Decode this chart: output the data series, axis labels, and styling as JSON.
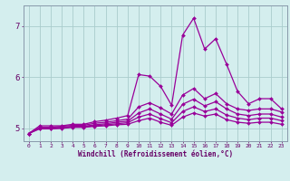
{
  "background_color": "#d4eeee",
  "grid_color": "#aacccc",
  "line_color": "#990099",
  "xlabel": "Windchill (Refroidissement éolien,°C)",
  "xlim": [
    -0.5,
    23.5
  ],
  "ylim": [
    4.75,
    7.4
  ],
  "yticks": [
    5,
    6,
    7
  ],
  "xticks": [
    0,
    1,
    2,
    3,
    4,
    5,
    6,
    7,
    8,
    9,
    10,
    11,
    12,
    13,
    14,
    15,
    16,
    17,
    18,
    19,
    20,
    21,
    22,
    23
  ],
  "series": [
    {
      "x": [
        0,
        1,
        2,
        3,
        4,
        5,
        6,
        7,
        8,
        9,
        10,
        11,
        12,
        13,
        14,
        15,
        16,
        17,
        18,
        19,
        20,
        21,
        22,
        23
      ],
      "y": [
        4.9,
        5.05,
        5.05,
        5.05,
        5.08,
        5.08,
        5.13,
        5.16,
        5.2,
        5.25,
        6.05,
        6.02,
        5.82,
        5.45,
        6.82,
        7.15,
        6.55,
        6.75,
        6.25,
        5.72,
        5.48,
        5.58,
        5.58,
        5.38
      ],
      "marker": "D",
      "markersize": 2.0,
      "linewidth": 0.9
    },
    {
      "x": [
        0,
        1,
        2,
        3,
        4,
        5,
        6,
        7,
        8,
        9,
        10,
        11,
        12,
        13,
        14,
        15,
        16,
        17,
        18,
        19,
        20,
        21,
        22,
        23
      ],
      "y": [
        4.9,
        5.02,
        5.02,
        5.04,
        5.06,
        5.06,
        5.1,
        5.12,
        5.15,
        5.18,
        5.42,
        5.5,
        5.4,
        5.28,
        5.65,
        5.78,
        5.58,
        5.68,
        5.48,
        5.38,
        5.35,
        5.38,
        5.38,
        5.32
      ],
      "marker": "D",
      "markersize": 2.0,
      "linewidth": 0.9
    },
    {
      "x": [
        0,
        1,
        2,
        3,
        4,
        5,
        6,
        7,
        8,
        9,
        10,
        11,
        12,
        13,
        14,
        15,
        16,
        17,
        18,
        19,
        20,
        21,
        22,
        23
      ],
      "y": [
        4.9,
        5.01,
        5.01,
        5.02,
        5.04,
        5.04,
        5.07,
        5.09,
        5.12,
        5.14,
        5.3,
        5.38,
        5.28,
        5.18,
        5.47,
        5.57,
        5.44,
        5.52,
        5.38,
        5.28,
        5.25,
        5.28,
        5.28,
        5.22
      ],
      "marker": "D",
      "markersize": 2.0,
      "linewidth": 0.9
    },
    {
      "x": [
        0,
        1,
        2,
        3,
        4,
        5,
        6,
        7,
        8,
        9,
        10,
        11,
        12,
        13,
        14,
        15,
        16,
        17,
        18,
        19,
        20,
        21,
        22,
        23
      ],
      "y": [
        4.9,
        5.0,
        5.0,
        5.01,
        5.03,
        5.03,
        5.05,
        5.07,
        5.09,
        5.11,
        5.22,
        5.28,
        5.19,
        5.11,
        5.33,
        5.42,
        5.33,
        5.38,
        5.26,
        5.2,
        5.17,
        5.2,
        5.2,
        5.15
      ],
      "marker": "D",
      "markersize": 2.0,
      "linewidth": 0.9
    },
    {
      "x": [
        0,
        1,
        2,
        3,
        4,
        5,
        6,
        7,
        8,
        9,
        10,
        11,
        12,
        13,
        14,
        15,
        16,
        17,
        18,
        19,
        20,
        21,
        22,
        23
      ],
      "y": [
        4.9,
        4.99,
        4.99,
        5.0,
        5.02,
        5.02,
        5.04,
        5.05,
        5.07,
        5.08,
        5.15,
        5.2,
        5.12,
        5.06,
        5.22,
        5.3,
        5.24,
        5.28,
        5.17,
        5.12,
        5.1,
        5.12,
        5.12,
        5.08
      ],
      "marker": "D",
      "markersize": 2.0,
      "linewidth": 0.9
    }
  ]
}
